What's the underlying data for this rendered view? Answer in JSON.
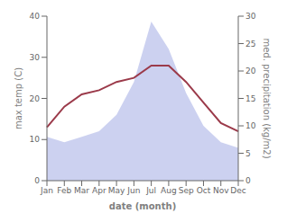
{
  "chart_data": {
    "type": "line",
    "xlabel": "date (month)",
    "ylabel": "max temp (C)",
    "y2label": "med. precipitation (kg/m2)",
    "categories": [
      "Jan",
      "Feb",
      "Mar",
      "Apr",
      "May",
      "Jun",
      "Jul",
      "Aug",
      "Sep",
      "Oct",
      "Nov",
      "Dec"
    ],
    "series": [
      {
        "type": "area",
        "axis": "y2",
        "color": "#b0b8e8",
        "values": [
          8,
          7,
          8,
          9,
          12,
          18,
          29,
          24,
          16,
          10,
          7,
          6
        ]
      },
      {
        "type": "line",
        "color": "#9b3a4a",
        "values": [
          13,
          18,
          21,
          22,
          24,
          25,
          28,
          28,
          24,
          19,
          14,
          12
        ]
      }
    ],
    "ylim": [
      0,
      40
    ],
    "yticks": [
      0,
      10,
      20,
      30,
      40
    ],
    "y2lim": [
      0,
      30
    ],
    "y2ticks": [
      0,
      5,
      10,
      15,
      20,
      25,
      30
    ],
    "grid": false
  }
}
